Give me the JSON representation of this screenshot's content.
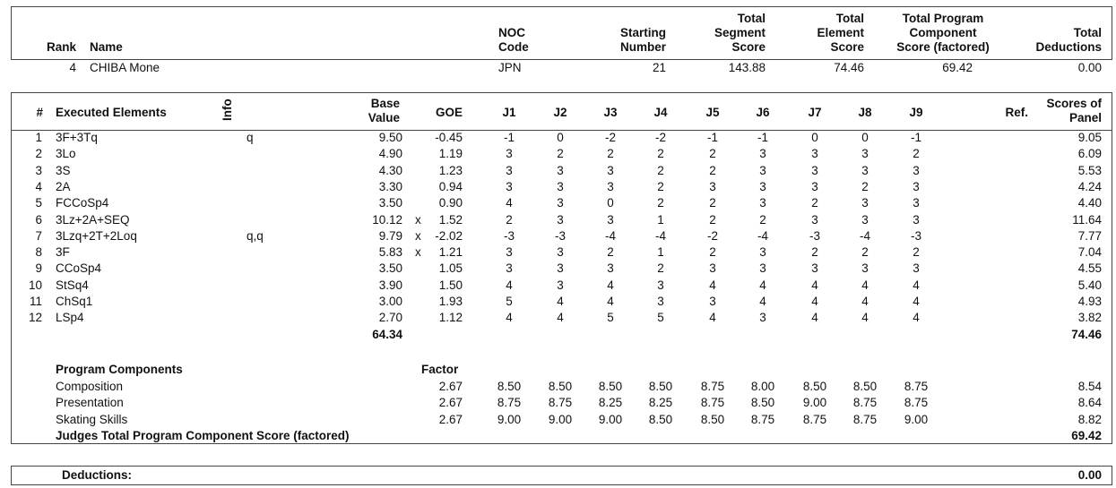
{
  "header": {
    "columns": [
      "Rank",
      "Name",
      "NOC\nCode",
      "Starting\nNumber",
      "Total\nSegment\nScore",
      "Total\nElement\nScore",
      "Total Program\nComponent\nScore (factored)",
      "Total\nDeductions"
    ],
    "values": [
      "4",
      "CHIBA Mone",
      "JPN",
      "21",
      "143.88",
      "74.46",
      "69.42",
      "0.00"
    ]
  },
  "elements_table": {
    "columns": [
      "#",
      "Executed Elements",
      "Info",
      "Base\nValue",
      "GOE",
      "J1",
      "J2",
      "J3",
      "J4",
      "J5",
      "J6",
      "J7",
      "J8",
      "J9",
      "Ref.",
      "Scores of\nPanel"
    ],
    "rows": [
      {
        "no": "1",
        "element": "3F+3Tq",
        "info": "q",
        "base": "9.50",
        "bonus": "",
        "goe": "-0.45",
        "judges": [
          "-1",
          "0",
          "-2",
          "-2",
          "-1",
          "-1",
          "0",
          "0",
          "-1"
        ],
        "panel": "9.05"
      },
      {
        "no": "2",
        "element": "3Lo",
        "info": "",
        "base": "4.90",
        "bonus": "",
        "goe": "1.19",
        "judges": [
          "3",
          "2",
          "2",
          "2",
          "2",
          "3",
          "3",
          "3",
          "2"
        ],
        "panel": "6.09"
      },
      {
        "no": "3",
        "element": "3S",
        "info": "",
        "base": "4.30",
        "bonus": "",
        "goe": "1.23",
        "judges": [
          "3",
          "3",
          "3",
          "2",
          "2",
          "3",
          "3",
          "3",
          "3"
        ],
        "panel": "5.53"
      },
      {
        "no": "4",
        "element": "2A",
        "info": "",
        "base": "3.30",
        "bonus": "",
        "goe": "0.94",
        "judges": [
          "3",
          "3",
          "3",
          "2",
          "3",
          "3",
          "3",
          "2",
          "3"
        ],
        "panel": "4.24"
      },
      {
        "no": "5",
        "element": "FCCoSp4",
        "info": "",
        "base": "3.50",
        "bonus": "",
        "goe": "0.90",
        "judges": [
          "4",
          "3",
          "0",
          "2",
          "2",
          "3",
          "2",
          "3",
          "3"
        ],
        "panel": "4.40"
      },
      {
        "no": "6",
        "element": "3Lz+2A+SEQ",
        "info": "",
        "base": "10.12",
        "bonus": "x",
        "goe": "1.52",
        "judges": [
          "2",
          "3",
          "3",
          "1",
          "2",
          "2",
          "3",
          "3",
          "3"
        ],
        "panel": "11.64"
      },
      {
        "no": "7",
        "element": "3Lzq+2T+2Loq",
        "info": "q,q",
        "base": "9.79",
        "bonus": "x",
        "goe": "-2.02",
        "judges": [
          "-3",
          "-3",
          "-4",
          "-4",
          "-2",
          "-4",
          "-3",
          "-4",
          "-3"
        ],
        "panel": "7.77"
      },
      {
        "no": "8",
        "element": "3F",
        "info": "",
        "base": "5.83",
        "bonus": "x",
        "goe": "1.21",
        "judges": [
          "3",
          "3",
          "2",
          "1",
          "2",
          "3",
          "2",
          "2",
          "2"
        ],
        "panel": "7.04"
      },
      {
        "no": "9",
        "element": "CCoSp4",
        "info": "",
        "base": "3.50",
        "bonus": "",
        "goe": "1.05",
        "judges": [
          "3",
          "3",
          "3",
          "2",
          "3",
          "3",
          "3",
          "3",
          "3"
        ],
        "panel": "4.55"
      },
      {
        "no": "10",
        "element": "StSq4",
        "info": "",
        "base": "3.90",
        "bonus": "",
        "goe": "1.50",
        "judges": [
          "4",
          "3",
          "4",
          "3",
          "4",
          "4",
          "4",
          "4",
          "4"
        ],
        "panel": "5.40"
      },
      {
        "no": "11",
        "element": "ChSq1",
        "info": "",
        "base": "3.00",
        "bonus": "",
        "goe": "1.93",
        "judges": [
          "5",
          "4",
          "4",
          "3",
          "3",
          "4",
          "4",
          "4",
          "4"
        ],
        "panel": "4.93"
      },
      {
        "no": "12",
        "element": "LSp4",
        "info": "",
        "base": "2.70",
        "bonus": "",
        "goe": "1.12",
        "judges": [
          "4",
          "4",
          "5",
          "5",
          "4",
          "3",
          "4",
          "4",
          "4"
        ],
        "panel": "3.82"
      }
    ],
    "base_total": "64.34",
    "panel_total": "74.46"
  },
  "program_components": {
    "title": "Program Components",
    "factor_label": "Factor",
    "rows": [
      {
        "name": "Composition",
        "factor": "2.67",
        "judges": [
          "8.50",
          "8.50",
          "8.50",
          "8.50",
          "8.75",
          "8.00",
          "8.50",
          "8.50",
          "8.75"
        ],
        "panel": "8.54"
      },
      {
        "name": "Presentation",
        "factor": "2.67",
        "judges": [
          "8.75",
          "8.75",
          "8.25",
          "8.25",
          "8.75",
          "8.50",
          "9.00",
          "8.75",
          "8.75"
        ],
        "panel": "8.64"
      },
      {
        "name": "Skating Skills",
        "factor": "2.67",
        "judges": [
          "9.00",
          "9.00",
          "9.00",
          "8.50",
          "8.50",
          "8.75",
          "8.75",
          "8.75",
          "9.00"
        ],
        "panel": "8.82"
      }
    ],
    "total_label": "Judges Total Program Component Score (factored)",
    "total": "69.42"
  },
  "deductions": {
    "label": "Deductions:",
    "value": "0.00"
  }
}
